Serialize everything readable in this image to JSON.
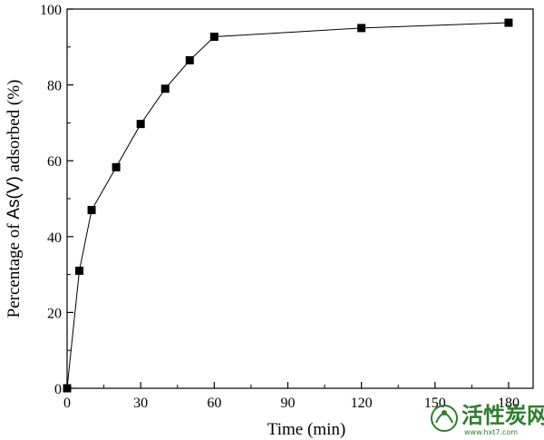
{
  "chart_data": {
    "type": "line",
    "xlabel": "Time (min)",
    "ylabel_prefix": "Percentage of ",
    "ylabel_species": "As(V)",
    "ylabel_suffix": " adsorbed (%)",
    "xlim": [
      0,
      190
    ],
    "ylim": [
      0,
      100
    ],
    "xticks": [
      0,
      30,
      60,
      90,
      120,
      150,
      180
    ],
    "yticks": [
      0,
      20,
      40,
      60,
      80,
      100
    ],
    "grid": false,
    "marker": "square",
    "line_color": "#000000",
    "marker_color": "#000000",
    "series": [
      {
        "x": [
          0,
          5,
          10,
          20,
          30,
          40,
          50,
          60,
          120,
          180
        ],
        "y": [
          0,
          31,
          47,
          58.3,
          69.7,
          79,
          86.5,
          92.7,
          95,
          96.4
        ]
      }
    ]
  },
  "watermark": {
    "text": "活性炭网",
    "url": "www.hxt7.com",
    "color": "#2f7d2f"
  }
}
